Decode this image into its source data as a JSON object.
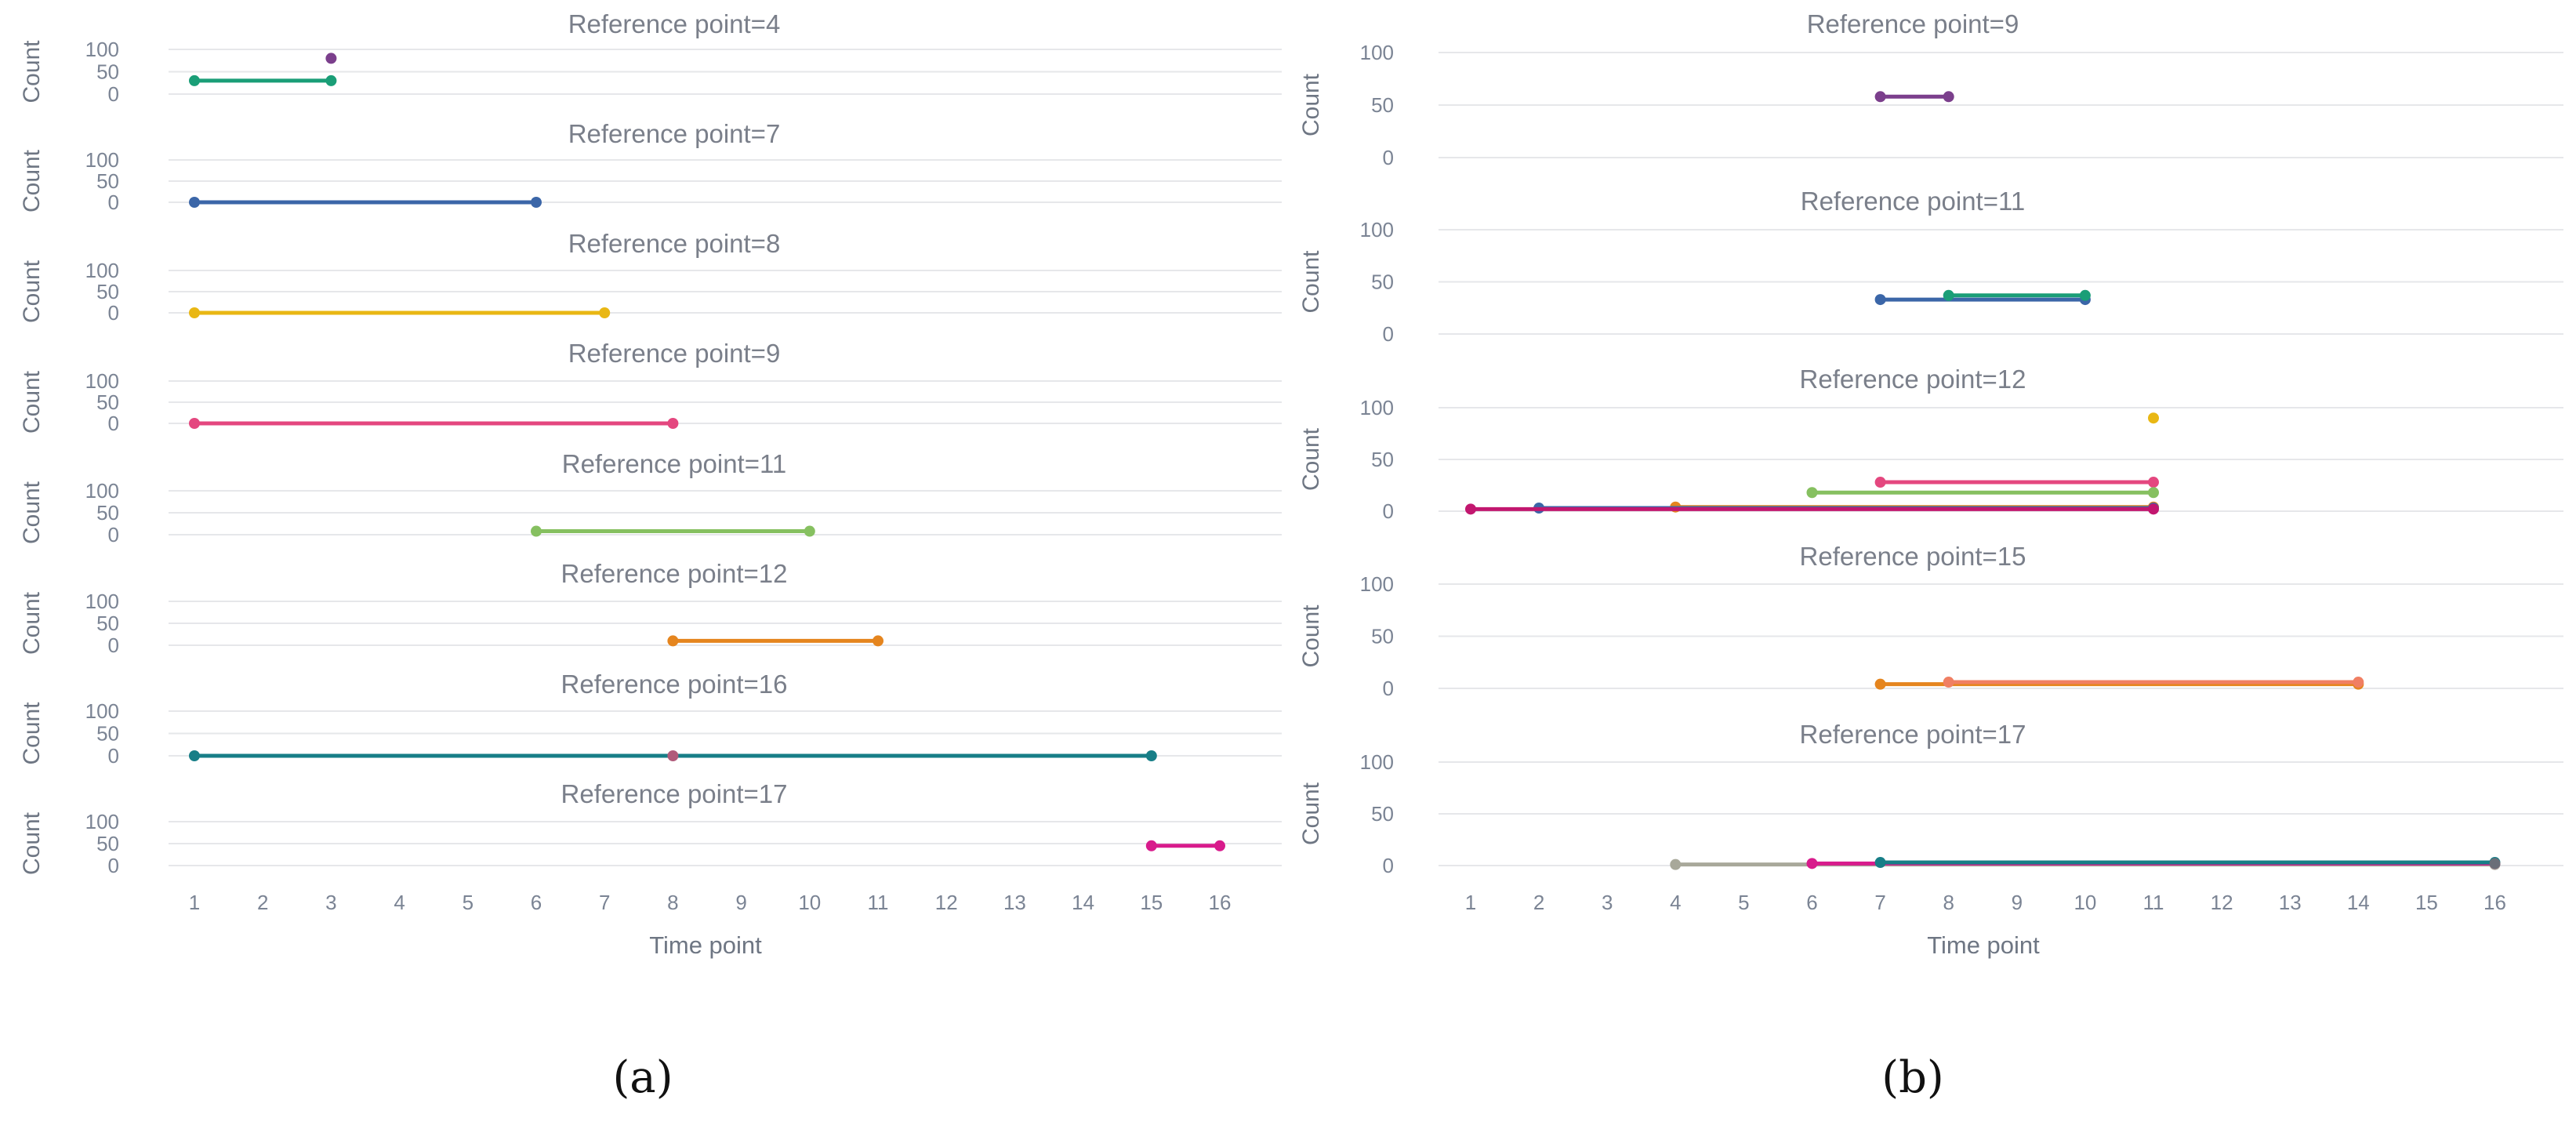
{
  "chart_data": [
    {
      "caption": "(a)",
      "type": "line",
      "xlabel": "Time point",
      "x_ticks": [
        1,
        2,
        3,
        4,
        5,
        6,
        7,
        8,
        9,
        10,
        11,
        12,
        13,
        14,
        15,
        16
      ],
      "xlim": [
        0.5,
        16
      ],
      "panels": [
        {
          "title": "Reference point=4",
          "ylabel": "Count",
          "yticks": [
            0,
            50,
            100
          ],
          "ylim": [
            0,
            100
          ],
          "series": [
            {
              "color": "#1a9e77",
              "points": [
                [
                  1,
                  30
                ],
                [
                  3,
                  30
                ]
              ]
            },
            {
              "color": "#7b3f8c",
              "points": [
                [
                  3,
                  80
                ]
              ]
            }
          ]
        },
        {
          "title": "Reference point=7",
          "ylabel": "Count",
          "yticks": [
            0,
            50,
            100
          ],
          "ylim": [
            0,
            100
          ],
          "series": [
            {
              "color": "#3b66a8",
              "points": [
                [
                  1,
                  0
                ],
                [
                  6,
                  0
                ]
              ]
            }
          ]
        },
        {
          "title": "Reference point=8",
          "ylabel": "Count",
          "yticks": [
            0,
            50,
            100
          ],
          "ylim": [
            0,
            100
          ],
          "series": [
            {
              "color": "#e9b714",
              "points": [
                [
                  1,
                  0
                ],
                [
                  7,
                  0
                ]
              ]
            }
          ]
        },
        {
          "title": "Reference point=9",
          "ylabel": "Count",
          "yticks": [
            0,
            50,
            100
          ],
          "ylim": [
            0,
            100
          ],
          "series": [
            {
              "color": "#e4477f",
              "points": [
                [
                  1,
                  0
                ],
                [
                  8,
                  0
                ]
              ]
            }
          ]
        },
        {
          "title": "Reference point=11",
          "ylabel": "Count",
          "yticks": [
            0,
            50,
            100
          ],
          "ylim": [
            0,
            100
          ],
          "series": [
            {
              "color": "#86c060",
              "points": [
                [
                  6,
                  8
                ],
                [
                  10,
                  8
                ]
              ]
            }
          ]
        },
        {
          "title": "Reference point=12",
          "ylabel": "Count",
          "yticks": [
            0,
            50,
            100
          ],
          "ylim": [
            0,
            100
          ],
          "series": [
            {
              "color": "#e5851e",
              "points": [
                [
                  8,
                  10
                ],
                [
                  11,
                  10
                ]
              ]
            }
          ]
        },
        {
          "title": "Reference point=16",
          "ylabel": "Count",
          "yticks": [
            0,
            50,
            100
          ],
          "ylim": [
            0,
            100
          ],
          "series": [
            {
              "color": "#177e87",
              "points": [
                [
                  1,
                  0
                ],
                [
                  15,
                  0
                ]
              ]
            },
            {
              "color": "#b05a7a",
              "points": [
                [
                  8,
                  0
                ]
              ]
            }
          ]
        },
        {
          "title": "Reference point=17",
          "ylabel": "Count",
          "yticks": [
            0,
            50,
            100
          ],
          "ylim": [
            0,
            100
          ],
          "series": [
            {
              "color": "#d81b8c",
              "points": [
                [
                  15,
                  45
                ],
                [
                  16,
                  45
                ]
              ]
            }
          ]
        }
      ]
    },
    {
      "caption": "(b)",
      "type": "line",
      "xlabel": "Time point",
      "x_ticks": [
        1,
        2,
        3,
        4,
        5,
        6,
        7,
        8,
        9,
        10,
        11,
        12,
        13,
        14,
        15,
        16
      ],
      "xlim": [
        0.5,
        16
      ],
      "panels": [
        {
          "title": "Reference point=9",
          "ylabel": "Count",
          "yticks": [
            0,
            50,
            100
          ],
          "ylim": [
            0,
            100
          ],
          "series": [
            {
              "color": "#7b3f8c",
              "points": [
                [
                  7,
                  58
                ],
                [
                  8,
                  58
                ]
              ]
            }
          ]
        },
        {
          "title": "Reference point=11",
          "ylabel": "Count",
          "yticks": [
            0,
            50,
            100
          ],
          "ylim": [
            0,
            100
          ],
          "series": [
            {
              "color": "#3b66a8",
              "points": [
                [
                  7,
                  33
                ],
                [
                  10,
                  33
                ]
              ]
            },
            {
              "color": "#1a9e77",
              "points": [
                [
                  8,
                  37
                ],
                [
                  10,
                  37
                ]
              ]
            }
          ]
        },
        {
          "title": "Reference point=12",
          "ylabel": "Count",
          "yticks": [
            0,
            50,
            100
          ],
          "ylim": [
            0,
            100
          ],
          "series": [
            {
              "color": "#e9b714",
              "points": [
                [
                  11,
                  90
                ]
              ]
            },
            {
              "color": "#e4477f",
              "points": [
                [
                  7,
                  28
                ],
                [
                  11,
                  28
                ]
              ]
            },
            {
              "color": "#86c060",
              "points": [
                [
                  6,
                  18
                ],
                [
                  11,
                  18
                ]
              ]
            },
            {
              "color": "#e5851e",
              "points": [
                [
                  4,
                  4
                ],
                [
                  11,
                  4
                ]
              ]
            },
            {
              "color": "#3b66a8",
              "points": [
                [
                  2,
                  3
                ],
                [
                  11,
                  3
                ]
              ]
            },
            {
              "color": "#c2176f",
              "points": [
                [
                  1,
                  2
                ],
                [
                  11,
                  2
                ]
              ]
            }
          ]
        },
        {
          "title": "Reference point=15",
          "ylabel": "Count",
          "yticks": [
            0,
            50,
            100
          ],
          "ylim": [
            0,
            100
          ],
          "series": [
            {
              "color": "#e5851e",
              "points": [
                [
                  7,
                  4
                ],
                [
                  14,
                  4
                ]
              ]
            },
            {
              "color": "#f07f63",
              "points": [
                [
                  8,
                  6
                ],
                [
                  14,
                  6
                ]
              ]
            }
          ]
        },
        {
          "title": "Reference point=17",
          "ylabel": "Count",
          "yticks": [
            0,
            50,
            100
          ],
          "ylim": [
            0,
            100
          ],
          "series": [
            {
              "color": "#a8a89a",
              "points": [
                [
                  4,
                  1
                ],
                [
                  16,
                  1
                ]
              ]
            },
            {
              "color": "#d81b8c",
              "points": [
                [
                  6,
                  2
                ],
                [
                  16,
                  2
                ]
              ]
            },
            {
              "color": "#177e87",
              "points": [
                [
                  7,
                  3
                ],
                [
                  16,
                  3
                ]
              ]
            },
            {
              "color": "#6b6f78",
              "points": [
                [
                  16,
                  2
                ]
              ]
            }
          ]
        }
      ]
    }
  ]
}
